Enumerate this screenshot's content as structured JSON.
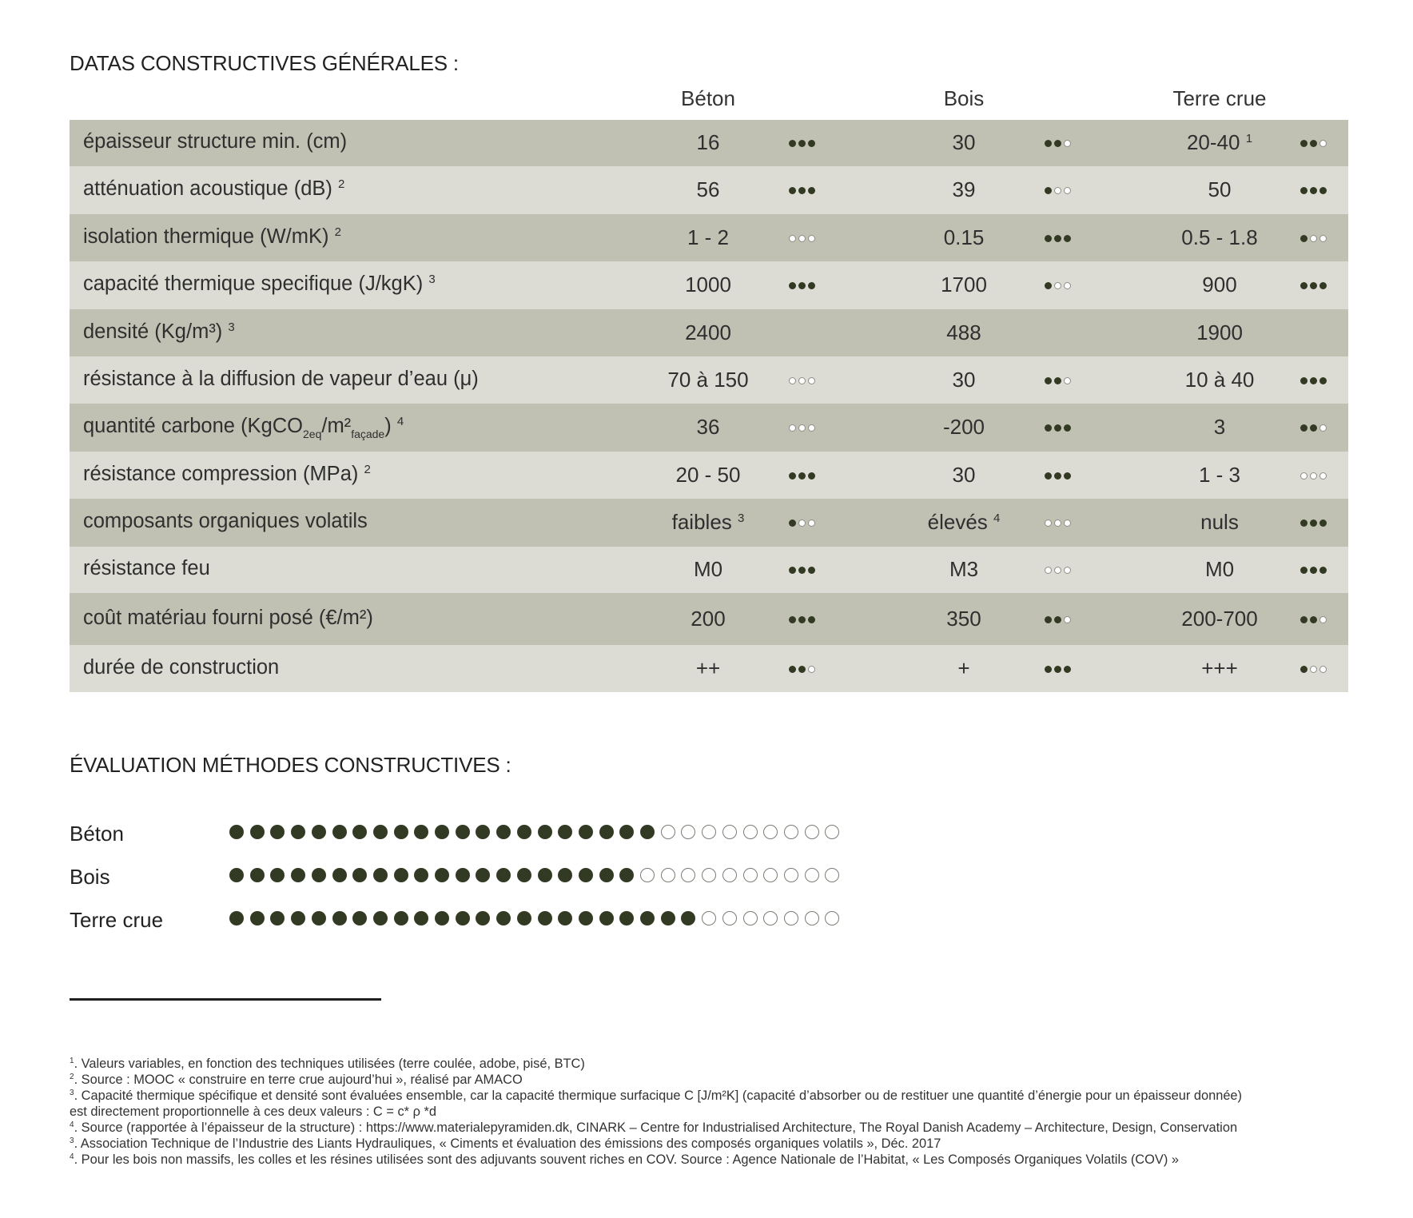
{
  "section1_title": "DATAS CONSTRUCTIVES GÉNÉRALES :",
  "columns": [
    "Béton",
    "Bois",
    "Terre crue"
  ],
  "colors": {
    "dot_filled": "#333a24",
    "row_dark": "#c0c0b3",
    "row_light": "#dcdcd5"
  },
  "rows": [
    {
      "label": "épaisseur structure min. (cm)",
      "label_sup": "",
      "values": [
        {
          "text": "16",
          "sup": "",
          "rating": 3
        },
        {
          "text": "30",
          "sup": "",
          "rating": 2
        },
        {
          "text": "20-40",
          "sup": "1",
          "rating": 2
        }
      ]
    },
    {
      "label": "atténuation acoustique (dB)",
      "label_sup": "2",
      "values": [
        {
          "text": "56",
          "sup": "",
          "rating": 3
        },
        {
          "text": "39",
          "sup": "",
          "rating": 1
        },
        {
          "text": "50",
          "sup": "",
          "rating": 3
        }
      ]
    },
    {
      "label": "isolation thermique (W/mK)",
      "label_sup": "2",
      "values": [
        {
          "text": "1 - 2",
          "sup": "",
          "rating": 0
        },
        {
          "text": "0.15",
          "sup": "",
          "rating": 3
        },
        {
          "text": "0.5 - 1.8",
          "sup": "",
          "rating": 1
        }
      ]
    },
    {
      "label": "capacité thermique specifique (J/kgK)",
      "label_sup": "3",
      "values": [
        {
          "text": "1000",
          "sup": "",
          "rating": 3
        },
        {
          "text": "1700",
          "sup": "",
          "rating": 1
        },
        {
          "text": "900",
          "sup": "",
          "rating": 3
        }
      ]
    },
    {
      "label": "densité (Kg/m³)",
      "label_sup": "3",
      "values": [
        {
          "text": "2400",
          "sup": "",
          "rating": null
        },
        {
          "text": "488",
          "sup": "",
          "rating": null
        },
        {
          "text": "1900",
          "sup": "",
          "rating": null
        }
      ]
    },
    {
      "label": "résistance à la diffusion de vapeur d’eau (μ)",
      "label_sup": "",
      "values": [
        {
          "text": "70 à 150",
          "sup": "",
          "rating": 0
        },
        {
          "text": "30",
          "sup": "",
          "rating": 2
        },
        {
          "text": "10 à 40",
          "sup": "",
          "rating": 3
        }
      ]
    },
    {
      "label": "quantité carbone (KgCO",
      "label_sub": "2eq",
      "label_mid": "/m²",
      "label_sub2": "façade",
      "label_end": ")",
      "label_sup": "4",
      "values": [
        {
          "text": "36",
          "sup": "",
          "rating": 0
        },
        {
          "text": "-200",
          "sup": "",
          "rating": 3
        },
        {
          "text": "3",
          "sup": "",
          "rating": 2
        }
      ]
    },
    {
      "label": "résistance compression (MPa)",
      "label_sup": "2",
      "values": [
        {
          "text": "20 - 50",
          "sup": "",
          "rating": 3
        },
        {
          "text": "30",
          "sup": "",
          "rating": 3
        },
        {
          "text": "1 - 3",
          "sup": "",
          "rating": 0
        }
      ]
    },
    {
      "label": "composants organiques volatils",
      "label_sup": "",
      "values": [
        {
          "text": "faibles",
          "sup": "3",
          "rating": 1
        },
        {
          "text": "élevés",
          "sup": "4",
          "rating": 0
        },
        {
          "text": "nuls",
          "sup": "",
          "rating": 3
        }
      ]
    },
    {
      "label": "résistance feu",
      "label_sup": "",
      "values": [
        {
          "text": "M0",
          "sup": "",
          "rating": 3
        },
        {
          "text": "M3",
          "sup": "",
          "rating": 0
        },
        {
          "text": "M0",
          "sup": "",
          "rating": 3
        }
      ]
    },
    {
      "label": "coût matériau fourni posé (€/m²)",
      "label_sup": "",
      "values": [
        {
          "text": "200",
          "sup": "",
          "rating": 3
        },
        {
          "text": "350",
          "sup": "",
          "rating": 2
        },
        {
          "text": "200-700",
          "sup": "",
          "rating": 2
        }
      ]
    },
    {
      "label": "durée de construction",
      "label_sup": "",
      "values": [
        {
          "text": "++",
          "sup": "",
          "rating": 2
        },
        {
          "text": "+",
          "sup": "",
          "rating": 3
        },
        {
          "text": "+++",
          "sup": "",
          "rating": 1
        }
      ]
    }
  ],
  "section2_title": "ÉVALUATION MÉTHODES CONSTRUCTIVES :",
  "evaluation": [
    {
      "name": "Béton",
      "filled": 21,
      "total": 30
    },
    {
      "name": "Bois",
      "filled": 20,
      "total": 30
    },
    {
      "name": "Terre crue",
      "filled": 23,
      "total": 30
    }
  ],
  "footnotes": [
    {
      "num": "1",
      "text": ". Valeurs variables, en fonction des techniques utilisées (terre coulée, adobe, pisé, BTC)"
    },
    {
      "num": "2",
      "text": ". Source : MOOC « construire en terre crue aujourd’hui », réalisé par AMACO"
    },
    {
      "num": "3",
      "text": ". Capacité thermique spécifique et densité sont évaluées ensemble, car la capacité thermique surfacique C [J/m²K] (capacité d’absorber ou de restituer une quantité d’énergie pour un épaisseur donnée)"
    },
    {
      "num": "",
      "text": "est directement proportionnelle à ces deux valeurs : C = c* ρ *d"
    },
    {
      "num": "4",
      "text": ". Source (rapportée à l’épaisseur de la structure) : https://www.materialepyramiden.dk, CINARK – Centre for Industrialised Architecture, The Royal Danish Academy – Architecture, Design, Conservation"
    },
    {
      "num": "3",
      "text": ". Association Technique de l’Industrie des Liants Hydrauliques, « Ciments et évaluation des émissions des composés organiques volatils », Déc. 2017"
    },
    {
      "num": "4",
      "text": ". Pour les bois non massifs, les colles et les résines utilisées sont des adjuvants souvent riches en COV. Source : Agence Nationale de l’Habitat, « Les Composés Organiques Volatils (COV) »"
    }
  ]
}
